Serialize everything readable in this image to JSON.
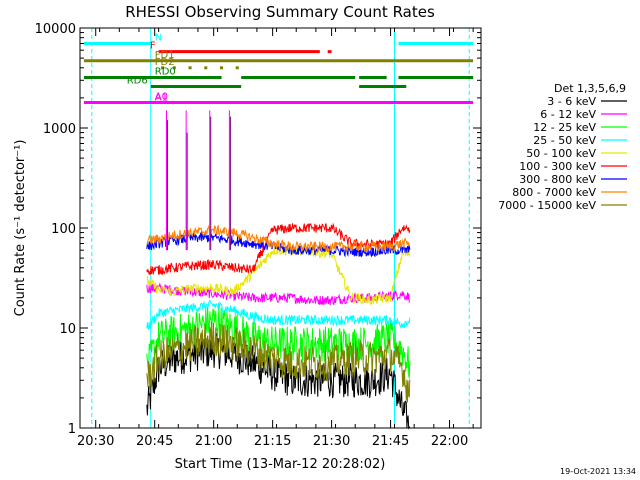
{
  "chart_data": {
    "type": "line",
    "title": "RHESSI Observing Summary Count Rates",
    "xlabel": "Start Time (13-Mar-12 20:28:02)",
    "ylabel": "Count Rate (s⁻¹ detector⁻¹)",
    "yscale": "log",
    "ylim": [
      1,
      10000
    ],
    "xlim": [
      "20:26",
      "22:08"
    ],
    "x_ticks": [
      "20:30",
      "20:45",
      "21:00",
      "21:15",
      "21:30",
      "21:45",
      "22:00"
    ],
    "y_ticks": [
      "1",
      "10",
      "100",
      "1000",
      "10000"
    ],
    "legend_title": "Det 1,3,5,6,9",
    "legend_position": "right",
    "timestamp": "19-Oct-2021 13:34",
    "series": [
      {
        "name": "3 - 6 keV",
        "color": "#000000",
        "x": [
          "20:43",
          "20:46",
          "20:50",
          "20:55",
          "21:00",
          "21:05",
          "21:10",
          "21:15",
          "21:20",
          "21:25",
          "21:30",
          "21:35",
          "21:40",
          "21:45",
          "21:48",
          "21:50"
        ],
        "values": [
          1.5,
          4,
          5,
          5.5,
          6,
          5.5,
          4.5,
          3.5,
          3,
          3,
          3,
          3,
          3,
          3.5,
          1.5,
          1
        ]
      },
      {
        "name": "6 - 12 keV",
        "color": "#ff00ff",
        "x": [
          "20:43",
          "20:46",
          "20:50",
          "20:55",
          "21:00",
          "21:05",
          "21:10",
          "21:15",
          "21:20",
          "21:25",
          "21:30",
          "21:35",
          "21:40",
          "21:45",
          "21:48",
          "21:50"
        ],
        "values": [
          25,
          25,
          24,
          23,
          22,
          21,
          20,
          20,
          20,
          19,
          19,
          20,
          20,
          21,
          22,
          20
        ]
      },
      {
        "name": "12 - 25 keV",
        "color": "#00ff00",
        "x": [
          "20:43",
          "20:46",
          "20:50",
          "20:55",
          "21:00",
          "21:05",
          "21:10",
          "21:15",
          "21:20",
          "21:25",
          "21:30",
          "21:35",
          "21:40",
          "21:45",
          "21:48",
          "21:50"
        ],
        "values": [
          4,
          8,
          9,
          10,
          12,
          10,
          8,
          7,
          7,
          7,
          7,
          7,
          7,
          8,
          6,
          4
        ]
      },
      {
        "name": "25 - 50 keV",
        "color": "#00ffff",
        "x": [
          "20:43",
          "20:46",
          "20:50",
          "20:55",
          "21:00",
          "21:05",
          "21:10",
          "21:15",
          "21:20",
          "21:25",
          "21:30",
          "21:35",
          "21:40",
          "21:45",
          "21:48",
          "21:50"
        ],
        "values": [
          10,
          14,
          15,
          16,
          17,
          15,
          13,
          12,
          12,
          12,
          12,
          12,
          12,
          12,
          11,
          12
        ]
      },
      {
        "name": "50 - 100 keV",
        "color": "#e6e600",
        "x": [
          "20:43",
          "20:46",
          "20:50",
          "20:55",
          "21:00",
          "21:05",
          "21:10",
          "21:15",
          "21:20",
          "21:25",
          "21:30",
          "21:35",
          "21:40",
          "21:45",
          "21:48",
          "21:50"
        ],
        "values": [
          30,
          24,
          23,
          25,
          25,
          23,
          35,
          60,
          60,
          58,
          55,
          20,
          19,
          20,
          55,
          55
        ]
      },
      {
        "name": "100 - 300 keV",
        "color": "#ff0000",
        "x": [
          "20:43",
          "20:46",
          "20:50",
          "20:55",
          "21:00",
          "21:05",
          "21:10",
          "21:15",
          "21:20",
          "21:25",
          "21:30",
          "21:35",
          "21:40",
          "21:45",
          "21:48",
          "21:50"
        ],
        "values": [
          38,
          38,
          40,
          42,
          43,
          40,
          38,
          95,
          100,
          100,
          100,
          70,
          68,
          70,
          100,
          100
        ]
      },
      {
        "name": "300 - 800 keV",
        "color": "#0000ff",
        "x": [
          "20:43",
          "20:46",
          "20:50",
          "20:55",
          "21:00",
          "21:05",
          "21:10",
          "21:15",
          "21:20",
          "21:25",
          "21:30",
          "21:35",
          "21:40",
          "21:45",
          "21:48",
          "21:50"
        ],
        "values": [
          65,
          70,
          75,
          80,
          80,
          75,
          70,
          65,
          60,
          60,
          60,
          58,
          58,
          60,
          60,
          60
        ]
      },
      {
        "name": "800 - 7000 keV",
        "color": "#ff8000",
        "x": [
          "20:43",
          "20:46",
          "20:50",
          "20:55",
          "21:00",
          "21:05",
          "21:10",
          "21:15",
          "21:20",
          "21:25",
          "21:30",
          "21:35",
          "21:40",
          "21:45",
          "21:48",
          "21:50"
        ],
        "values": [
          75,
          78,
          85,
          90,
          95,
          90,
          80,
          70,
          65,
          65,
          65,
          65,
          65,
          65,
          70,
          70
        ]
      },
      {
        "name": "7000 - 15000 keV",
        "color": "#808000",
        "x": [
          "20:43",
          "20:46",
          "20:50",
          "20:55",
          "21:00",
          "21:05",
          "21:10",
          "21:15",
          "21:20",
          "21:25",
          "21:30",
          "21:35",
          "21:40",
          "21:45",
          "21:48",
          "21:50"
        ],
        "values": [
          3,
          5,
          6,
          7,
          8,
          7,
          6,
          5,
          4.5,
          4.5,
          4.5,
          5,
          5,
          5.5,
          4,
          2
        ]
      }
    ],
    "spikes": [
      {
        "x": "20:48",
        "values": [
          1500,
          1200
        ]
      },
      {
        "x": "20:53",
        "values": [
          1500,
          900
        ]
      },
      {
        "x": "20:59",
        "values": [
          1500,
          1300
        ]
      },
      {
        "x": "21:04",
        "values": [
          1500,
          1300
        ]
      }
    ],
    "flag_bars": [
      {
        "label": "N",
        "color": "#00ffff",
        "y": 7000,
        "segments": [
          [
            "20:27",
            "20:44"
          ],
          [
            "21:47",
            "22:06"
          ]
        ]
      },
      {
        "label": "F",
        "color": "#ff0000",
        "y": 5800,
        "segments": [
          [
            "20:46",
            "21:27"
          ],
          [
            "21:29",
            "21:30"
          ]
        ]
      },
      {
        "label": "FD1",
        "color": "#808000",
        "y": 4700,
        "segments": [
          [
            "20:27",
            "22:06"
          ]
        ]
      },
      {
        "label": "FD2",
        "color": "#808000",
        "y": 4000,
        "dots": [
          "20:47",
          "20:50",
          "20:54",
          "20:58",
          "21:02",
          "21:06"
        ]
      },
      {
        "label": "RD0",
        "color": "#008000",
        "y": 3200,
        "segments": [
          [
            "20:27",
            "21:02"
          ],
          [
            "21:07",
            "21:36"
          ],
          [
            "21:37",
            "21:44"
          ],
          [
            "21:47",
            "22:06"
          ]
        ]
      },
      {
        "label": "RD6",
        "color": "#008000",
        "y": 2600,
        "segments": [
          [
            "20:44",
            "21:07"
          ],
          [
            "21:37",
            "21:49"
          ]
        ]
      },
      {
        "label": "A0",
        "color": "#ff00ff",
        "y": 1800,
        "segments": [
          [
            "20:27",
            "22:06"
          ]
        ],
        "dots": [
          "20:46",
          "20:48",
          "20:53",
          "20:59",
          "21:04"
        ]
      },
      {
        "label": "A1",
        "color": "#ff00ff",
        "y": 1750,
        "segments": []
      }
    ],
    "vertical_markers": [
      {
        "x": "20:29",
        "color": "#00ffff",
        "style": "dashed"
      },
      {
        "x": "20:44",
        "color": "#00ffff",
        "style": "solid"
      },
      {
        "x": "21:46",
        "color": "#00ffff",
        "style": "solid"
      },
      {
        "x": "22:05",
        "color": "#00ffff",
        "style": "dashed"
      }
    ]
  }
}
